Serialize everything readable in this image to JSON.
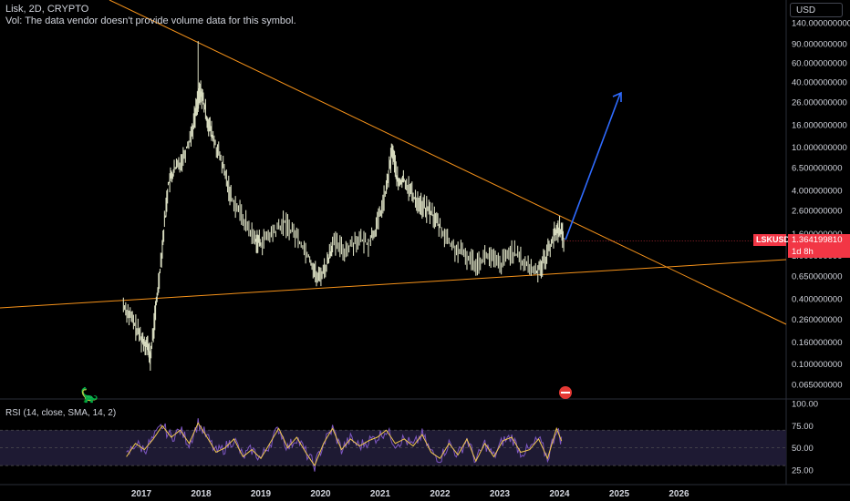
{
  "header": {
    "title": "Lisk, 2D, CRYPTO",
    "volume_note": "Vol: The data vendor doesn't provide volume data for this symbol."
  },
  "currency_button": "USD",
  "price_label": {
    "symbol": "LSKUSD",
    "price": "1.364199810",
    "countdown": "1d 8h",
    "color": "#f23645"
  },
  "rsi_legend": "RSI (14, close, SMA, 14, 2)",
  "colors": {
    "background": "#000000",
    "candles": "#d8dcc0",
    "trendline": "#f7931a",
    "projection_arrow": "#2f6bff",
    "rsi_line": "#7e57c2",
    "rsi_sma": "#f2c94c",
    "rsi_band": "#1e1a33"
  },
  "chart_data": [
    {
      "type": "line",
      "title": "Lisk, 2D, CRYPTO",
      "y_scale": "log",
      "ylim": [
        0.05,
        140
      ],
      "x_tick_labels": [
        "2017",
        "2018",
        "2019",
        "2020",
        "2021",
        "2022",
        "2023",
        "2024",
        "2025",
        "2026"
      ],
      "y_tick_labels": [
        "140.000000000",
        "90.000000000",
        "60.000000000",
        "40.000000000",
        "26.000000000",
        "16.000000000",
        "10.000000000",
        "6.500000000",
        "4.000000000",
        "2.600000000",
        "1.600000000",
        "1.000000000",
        "0.650000000",
        "0.400000000",
        "0.260000000",
        "0.160000000",
        "0.100000000",
        "0.065000000"
      ],
      "y_ticks": [
        140,
        90,
        60,
        40,
        26,
        16,
        10,
        6.5,
        4,
        2.6,
        1.6,
        1.0,
        0.65,
        0.4,
        0.26,
        0.16,
        0.1,
        0.065
      ],
      "series": [
        {
          "x": [
            2016.7,
            2016.85,
            2017.0,
            2017.1,
            2017.15,
            2017.25,
            2017.35,
            2017.45,
            2017.55,
            2017.7,
            2017.85,
            2017.95,
            2018.0,
            2018.1,
            2018.2,
            2018.35,
            2018.5,
            2018.7,
            2018.9,
            2019.0,
            2019.2,
            2019.4,
            2019.6,
            2019.8,
            2019.95,
            2020.1,
            2020.2,
            2020.4,
            2020.6,
            2020.8,
            2020.95,
            2021.1,
            2021.2,
            2021.3,
            2021.4,
            2021.55,
            2021.7,
            2021.85,
            2022.0,
            2022.2,
            2022.4,
            2022.6,
            2022.8,
            2023.0,
            2023.2,
            2023.4,
            2023.6,
            2023.75,
            2023.9,
            2024.0,
            2024.08
          ],
          "values": [
            0.35,
            0.25,
            0.17,
            0.15,
            0.11,
            0.35,
            1.2,
            4.5,
            6.0,
            8.0,
            14.0,
            28.0,
            32.0,
            18.0,
            12.0,
            7.0,
            3.5,
            2.2,
            1.4,
            1.3,
            1.6,
            2.0,
            1.5,
            1.0,
            0.6,
            0.8,
            1.3,
            1.1,
            1.4,
            1.3,
            1.9,
            4.0,
            9.5,
            4.5,
            5.0,
            3.5,
            2.8,
            2.5,
            1.8,
            1.2,
            1.0,
            0.85,
            1.0,
            0.8,
            1.1,
            0.85,
            0.7,
            0.9,
            1.5,
            1.8,
            1.36
          ]
        }
      ]
    },
    {
      "type": "line",
      "title": "RSI (14, close, SMA, 14, 2)",
      "ylim": [
        20,
        100
      ],
      "y_tick_labels": [
        "100.00",
        "75.00",
        "50.00",
        "25.00"
      ],
      "y_ticks": [
        100,
        75,
        50,
        25
      ],
      "band": [
        30,
        70
      ],
      "series": [
        {
          "x": [
            2016.75,
            2016.9,
            2017.05,
            2017.2,
            2017.35,
            2017.5,
            2017.65,
            2017.8,
            2017.95,
            2018.1,
            2018.25,
            2018.4,
            2018.55,
            2018.7,
            2018.85,
            2019.0,
            2019.15,
            2019.3,
            2019.45,
            2019.6,
            2019.75,
            2019.9,
            2020.05,
            2020.2,
            2020.35,
            2020.5,
            2020.65,
            2020.8,
            2020.95,
            2021.1,
            2021.25,
            2021.4,
            2021.55,
            2021.7,
            2021.85,
            2022.0,
            2022.15,
            2022.3,
            2022.45,
            2022.6,
            2022.75,
            2022.9,
            2023.05,
            2023.2,
            2023.35,
            2023.5,
            2023.65,
            2023.8,
            2023.95,
            2024.05
          ],
          "values": [
            40,
            55,
            48,
            60,
            75,
            62,
            70,
            55,
            78,
            62,
            45,
            50,
            60,
            40,
            48,
            38,
            55,
            72,
            50,
            62,
            45,
            30,
            55,
            72,
            48,
            60,
            52,
            58,
            62,
            70,
            55,
            60,
            52,
            65,
            45,
            38,
            55,
            42,
            60,
            35,
            55,
            40,
            58,
            62,
            45,
            48,
            60,
            38,
            72,
            55
          ]
        }
      ]
    }
  ]
}
